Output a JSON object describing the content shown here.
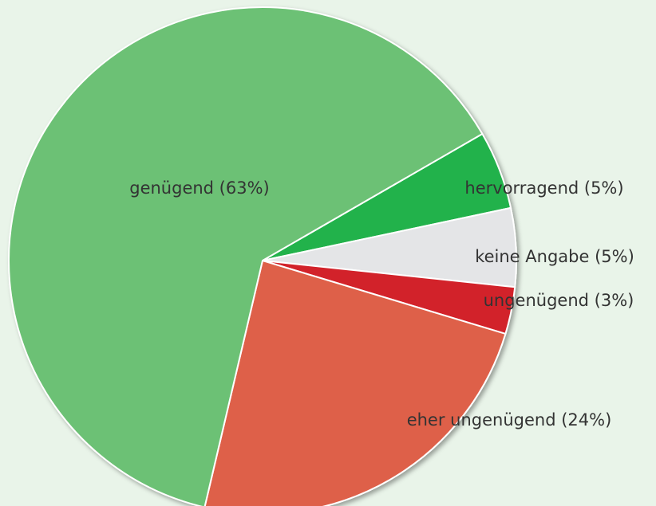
{
  "chart_data": {
    "type": "pie",
    "categories": [
      "hervorragend (5%)",
      "keine Angabe (5%)",
      "ungenügend (3%)",
      "eher ungenügend (24%)",
      "genügend (63%)"
    ],
    "values": [
      5,
      5,
      3,
      24,
      63
    ],
    "colors": [
      "#24b24b",
      "#e4e5e7",
      "#d2242b",
      "#de604a",
      "#6cc174"
    ]
  }
}
